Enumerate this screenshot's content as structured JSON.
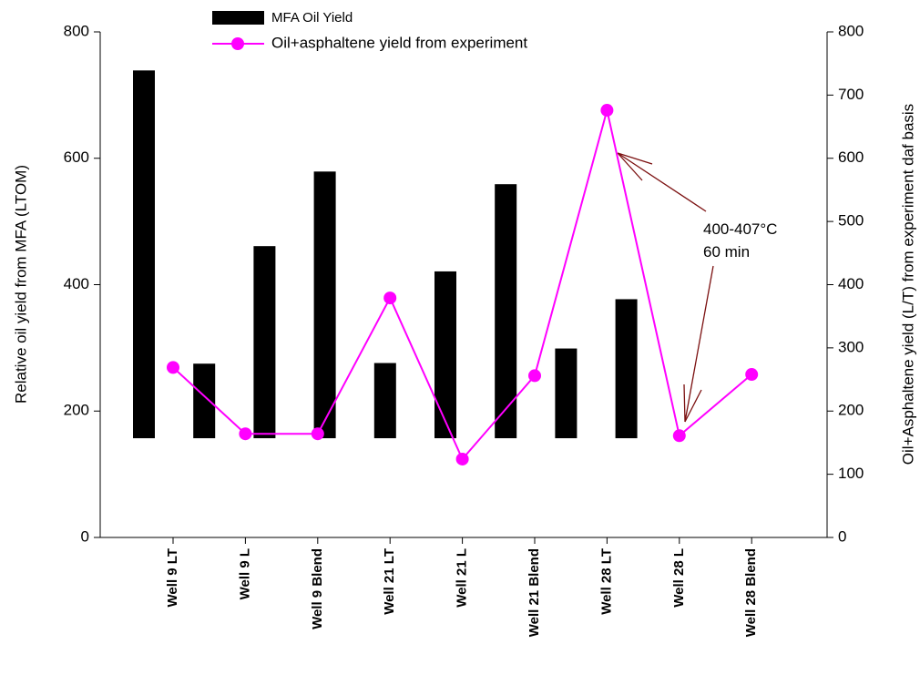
{
  "chart_data": {
    "type": "bar-line",
    "categories": [
      "Well 9 LT",
      "Well 9 L",
      "Well 9 Blend",
      "Well 21 LT",
      "Well 21 L",
      "Well 21 Blend",
      "Well 28 LT",
      "Well 28 L",
      "Well 28 Blend"
    ],
    "ylabel": "Relative oil yield from MFA (LTOM)",
    "y2label": "Oil+Asphaltene yield (L/T) from experiment daf basis",
    "ylim": [
      0,
      800
    ],
    "yticks": [
      0,
      200,
      400,
      600,
      800
    ],
    "y2lim": [
      0,
      800
    ],
    "y2ticks": [
      0,
      100,
      200,
      300,
      400,
      500,
      600,
      700,
      800
    ],
    "bar_base": 157,
    "series": [
      {
        "name": "MFA Oil Yield",
        "type": "bar",
        "color": "#000000",
        "values": [
          739,
          275,
          461,
          579,
          276,
          421,
          559,
          299,
          377
        ]
      },
      {
        "name": "Oil+asphaltene yield from experiment",
        "type": "line",
        "axis": "y2",
        "color": "#ff00ff",
        "values": [
          269,
          164,
          164,
          379,
          124,
          256,
          676,
          161,
          258
        ]
      }
    ],
    "annotation": [
      "400-407°C",
      "60 min"
    ]
  }
}
